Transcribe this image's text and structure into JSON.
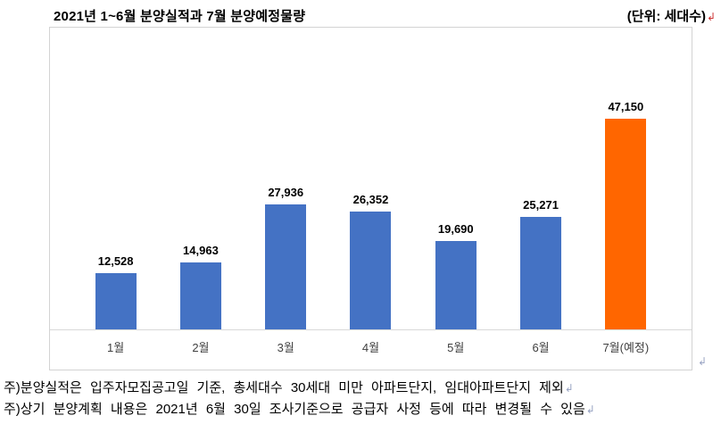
{
  "title": "2021년 1~6월 분양실적과 7월 분양예정물량",
  "unit_label": "(단위: 세대수)",
  "paragraph_mark": "↲",
  "chart_data": {
    "type": "bar",
    "title": "2021년 1~6월 분양실적과 7월 분양예정물량",
    "categories": [
      "1월",
      "2월",
      "3월",
      "4월",
      "5월",
      "6월",
      "7월(예정)"
    ],
    "values": [
      12528,
      14963,
      27936,
      26352,
      19690,
      25271,
      47150
    ],
    "value_labels": [
      "12,528",
      "14,963",
      "27,936",
      "26,352",
      "19,690",
      "25,271",
      "47,150"
    ],
    "bar_colors": [
      "#4472C4",
      "#4472C4",
      "#4472C4",
      "#4472C4",
      "#4472C4",
      "#4472C4",
      "#FF6600"
    ],
    "xlabel": "",
    "ylabel": "",
    "ylim": [
      0,
      50000
    ],
    "grid": false,
    "legend": false,
    "unit": "세대수"
  },
  "footnotes": [
    "주)분양실적은 입주자모집공고일 기준, 총세대수 30세대 미만 아파트단지, 임대아파트단지 제외",
    "주)상기 분양계획 내용은 2021년 6월 30일 조사기준으로 공급자 사정 등에 따라 변경될 수 있음"
  ],
  "colors": {
    "bar_blue": "#4472C4",
    "bar_orange": "#FF6600",
    "axis_gray": "#D9D9D9",
    "frame_gray": "#D3D3D3"
  }
}
